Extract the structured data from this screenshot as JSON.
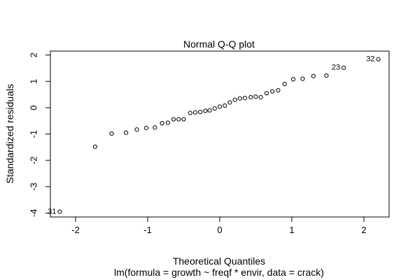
{
  "chart_data": {
    "type": "scatter",
    "title": "Normal Q-Q plot",
    "xlabel": "Theoretical Quantiles",
    "ylabel": "Standardized residuals",
    "subtitle": "lm(formula = growth ~ freqf * envir, data = crack)",
    "xlim": [
      -2.35,
      2.35
    ],
    "ylim": [
      -4.15,
      2.15
    ],
    "x_ticks": [
      -2,
      -1,
      0,
      1,
      2
    ],
    "y_ticks": [
      -4,
      -3,
      -2,
      -1,
      0,
      1,
      2
    ],
    "grid": false,
    "points": [
      {
        "x": -2.22,
        "y": -3.95,
        "label": "31"
      },
      {
        "x": -1.73,
        "y": -1.48
      },
      {
        "x": -1.5,
        "y": -0.98
      },
      {
        "x": -1.3,
        "y": -0.95
      },
      {
        "x": -1.15,
        "y": -0.83
      },
      {
        "x": -1.02,
        "y": -0.77
      },
      {
        "x": -0.9,
        "y": -0.75
      },
      {
        "x": -0.8,
        "y": -0.59
      },
      {
        "x": -0.72,
        "y": -0.57
      },
      {
        "x": -0.64,
        "y": -0.44
      },
      {
        "x": -0.57,
        "y": -0.44
      },
      {
        "x": -0.5,
        "y": -0.44
      },
      {
        "x": -0.41,
        "y": -0.2
      },
      {
        "x": -0.34,
        "y": -0.18
      },
      {
        "x": -0.27,
        "y": -0.16
      },
      {
        "x": -0.2,
        "y": -0.12
      },
      {
        "x": -0.14,
        "y": -0.1
      },
      {
        "x": -0.07,
        "y": -0.03
      },
      {
        "x": 0.0,
        "y": 0.04
      },
      {
        "x": 0.07,
        "y": 0.08
      },
      {
        "x": 0.14,
        "y": 0.2
      },
      {
        "x": 0.21,
        "y": 0.3
      },
      {
        "x": 0.28,
        "y": 0.35
      },
      {
        "x": 0.35,
        "y": 0.37
      },
      {
        "x": 0.43,
        "y": 0.4
      },
      {
        "x": 0.5,
        "y": 0.42
      },
      {
        "x": 0.57,
        "y": 0.4
      },
      {
        "x": 0.65,
        "y": 0.55
      },
      {
        "x": 0.73,
        "y": 0.62
      },
      {
        "x": 0.81,
        "y": 0.66
      },
      {
        "x": 0.9,
        "y": 0.9
      },
      {
        "x": 1.02,
        "y": 1.08
      },
      {
        "x": 1.15,
        "y": 1.1
      },
      {
        "x": 1.3,
        "y": 1.2
      },
      {
        "x": 1.48,
        "y": 1.22
      },
      {
        "x": 1.72,
        "y": 1.52,
        "label": "23"
      },
      {
        "x": 2.2,
        "y": 1.84,
        "label": "32"
      }
    ]
  }
}
